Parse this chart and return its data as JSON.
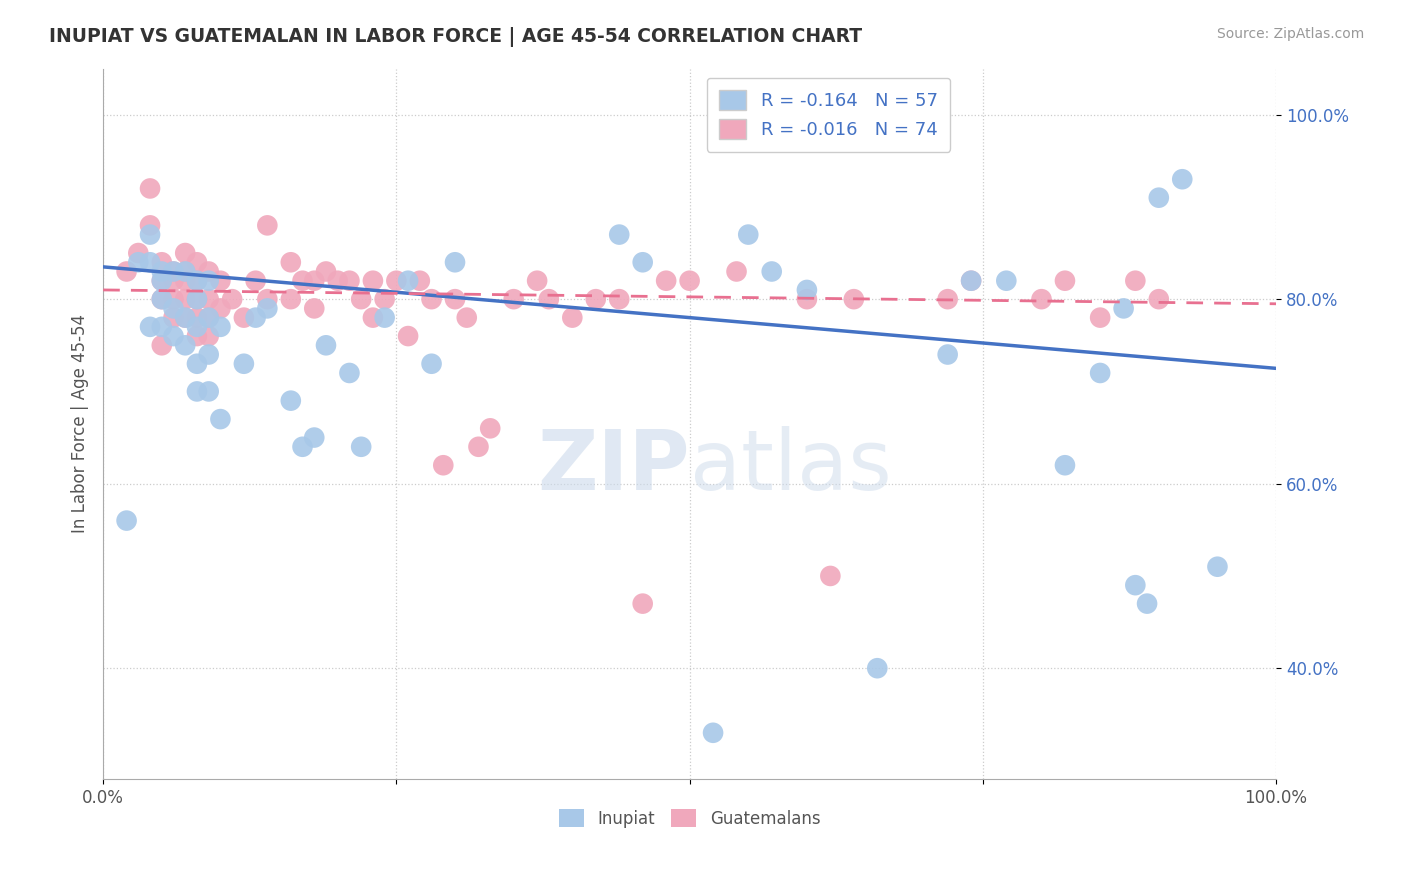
{
  "title": "INUPIAT VS GUATEMALAN IN LABOR FORCE | AGE 45-54 CORRELATION CHART",
  "source": "Source: ZipAtlas.com",
  "ylabel": "In Labor Force | Age 45-54",
  "watermark": "ZIPatlas",
  "inupiat_R": -0.164,
  "inupiat_N": 57,
  "guatemalan_R": -0.016,
  "guatemalan_N": 74,
  "inupiat_color": "#a8c8e8",
  "guatemalan_color": "#f0a8bc",
  "inupiat_line_color": "#4472c4",
  "guatemalan_line_color": "#e87090",
  "background_color": "#ffffff",
  "grid_color": "#cccccc",
  "xlim": [
    0.0,
    1.0
  ],
  "ylim": [
    0.28,
    1.05
  ],
  "yticks": [
    0.4,
    0.6,
    0.8,
    1.0
  ],
  "ytick_labels": [
    "40.0%",
    "60.0%",
    "80.0%",
    "100.0%"
  ],
  "xticks": [
    0.0,
    0.25,
    0.5,
    0.75,
    1.0
  ],
  "xtick_labels": [
    "0.0%",
    "",
    "",
    "",
    "100.0%"
  ],
  "inupiat_x": [
    0.02,
    0.03,
    0.04,
    0.04,
    0.04,
    0.05,
    0.05,
    0.05,
    0.05,
    0.06,
    0.06,
    0.06,
    0.07,
    0.07,
    0.07,
    0.08,
    0.08,
    0.08,
    0.08,
    0.08,
    0.09,
    0.09,
    0.09,
    0.09,
    0.1,
    0.1,
    0.12,
    0.13,
    0.14,
    0.16,
    0.17,
    0.18,
    0.19,
    0.21,
    0.22,
    0.24,
    0.26,
    0.28,
    0.3,
    0.44,
    0.46,
    0.52,
    0.55,
    0.57,
    0.6,
    0.66,
    0.72,
    0.74,
    0.77,
    0.82,
    0.85,
    0.87,
    0.88,
    0.89,
    0.9,
    0.92,
    0.95
  ],
  "inupiat_y": [
    0.56,
    0.84,
    0.87,
    0.84,
    0.77,
    0.83,
    0.82,
    0.8,
    0.77,
    0.83,
    0.79,
    0.76,
    0.83,
    0.78,
    0.75,
    0.82,
    0.8,
    0.77,
    0.73,
    0.7,
    0.82,
    0.78,
    0.74,
    0.7,
    0.77,
    0.67,
    0.73,
    0.78,
    0.79,
    0.69,
    0.64,
    0.65,
    0.75,
    0.72,
    0.64,
    0.78,
    0.82,
    0.73,
    0.84,
    0.87,
    0.84,
    0.33,
    0.87,
    0.83,
    0.81,
    0.4,
    0.74,
    0.82,
    0.82,
    0.62,
    0.72,
    0.79,
    0.49,
    0.47,
    0.91,
    0.93,
    0.51
  ],
  "guatemalan_x": [
    0.02,
    0.03,
    0.04,
    0.04,
    0.05,
    0.05,
    0.05,
    0.05,
    0.06,
    0.06,
    0.06,
    0.06,
    0.07,
    0.07,
    0.07,
    0.07,
    0.07,
    0.08,
    0.08,
    0.08,
    0.08,
    0.08,
    0.09,
    0.09,
    0.09,
    0.09,
    0.1,
    0.1,
    0.11,
    0.12,
    0.13,
    0.14,
    0.14,
    0.16,
    0.16,
    0.17,
    0.18,
    0.18,
    0.19,
    0.2,
    0.21,
    0.22,
    0.23,
    0.23,
    0.24,
    0.25,
    0.26,
    0.27,
    0.28,
    0.29,
    0.3,
    0.31,
    0.32,
    0.33,
    0.35,
    0.37,
    0.38,
    0.4,
    0.42,
    0.44,
    0.46,
    0.48,
    0.5,
    0.54,
    0.6,
    0.62,
    0.64,
    0.72,
    0.74,
    0.8,
    0.82,
    0.85,
    0.88,
    0.9
  ],
  "guatemalan_y": [
    0.83,
    0.85,
    0.92,
    0.88,
    0.84,
    0.82,
    0.8,
    0.75,
    0.83,
    0.82,
    0.8,
    0.78,
    0.85,
    0.83,
    0.82,
    0.8,
    0.78,
    0.84,
    0.82,
    0.8,
    0.78,
    0.76,
    0.83,
    0.8,
    0.78,
    0.76,
    0.82,
    0.79,
    0.8,
    0.78,
    0.82,
    0.88,
    0.8,
    0.84,
    0.8,
    0.82,
    0.82,
    0.79,
    0.83,
    0.82,
    0.82,
    0.8,
    0.82,
    0.78,
    0.8,
    0.82,
    0.76,
    0.82,
    0.8,
    0.62,
    0.8,
    0.78,
    0.64,
    0.66,
    0.8,
    0.82,
    0.8,
    0.78,
    0.8,
    0.8,
    0.47,
    0.82,
    0.82,
    0.83,
    0.8,
    0.5,
    0.8,
    0.8,
    0.82,
    0.8,
    0.82,
    0.78,
    0.82,
    0.8
  ],
  "inupiat_line_x": [
    0.0,
    1.0
  ],
  "inupiat_line_y": [
    0.835,
    0.725
  ],
  "guatemalan_line_x": [
    0.0,
    1.0
  ],
  "guatemalan_line_y": [
    0.81,
    0.795
  ]
}
